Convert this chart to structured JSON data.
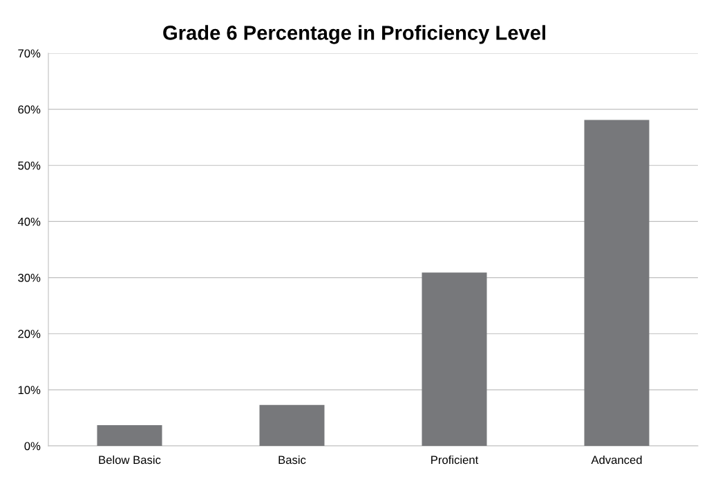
{
  "chart_data": {
    "type": "bar",
    "title": "Grade 6 Percentage in Proficiency Level",
    "categories": [
      "Below Basic",
      "Basic",
      "Proficient",
      "Advanced"
    ],
    "values": [
      3.7,
      7.3,
      30.9,
      58.1
    ],
    "color": "#77787b",
    "ylim": [
      0,
      70
    ],
    "yticks": [
      {
        "value": 0,
        "label": "0%"
      },
      {
        "value": 10,
        "label": "10%"
      },
      {
        "value": 20,
        "label": "20%"
      },
      {
        "value": 30,
        "label": "30%"
      },
      {
        "value": 40,
        "label": "40%"
      },
      {
        "value": 50,
        "label": "50%"
      },
      {
        "value": 60,
        "label": "60%"
      },
      {
        "value": 70,
        "label": "70%"
      }
    ],
    "grid": "y",
    "legend": false
  }
}
